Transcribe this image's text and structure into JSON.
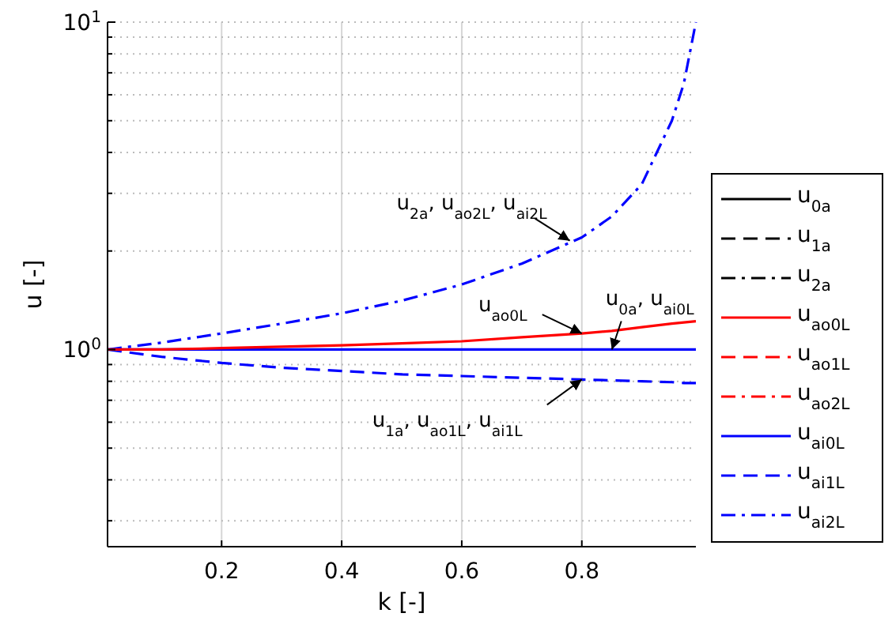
{
  "chart_data": {
    "type": "line",
    "xlabel": "k [-]",
    "ylabel": "u [-]",
    "log": "y",
    "grid": true,
    "legend": "right",
    "marker": "none",
    "xlim": [
      0.01,
      0.99
    ],
    "xticks": [
      0.2,
      0.4,
      0.6,
      0.8
    ],
    "ylim": [
      0.25,
      10
    ],
    "yticks": [
      {
        "value": 0.3,
        "label": null
      },
      {
        "value": 0.4,
        "label": null
      },
      {
        "value": 0.5,
        "label": null
      },
      {
        "value": 0.6,
        "label": null
      },
      {
        "value": 0.7,
        "label": null
      },
      {
        "value": 0.8,
        "label": null
      },
      {
        "value": 0.9,
        "label": null
      },
      {
        "value": 1,
        "label": "10$^{0}$"
      },
      {
        "value": 2,
        "label": null
      },
      {
        "value": 3,
        "label": null
      },
      {
        "value": 4,
        "label": null
      },
      {
        "value": 5,
        "label": null
      },
      {
        "value": 6,
        "label": null
      },
      {
        "value": 7,
        "label": null
      },
      {
        "value": 8,
        "label": null
      },
      {
        "value": 9,
        "label": null
      },
      {
        "value": 10,
        "label": "10$^{1}$"
      }
    ],
    "x": [
      0.01,
      0.1,
      0.2,
      0.3,
      0.4,
      0.5,
      0.6,
      0.7,
      0.8,
      0.85,
      0.9,
      0.95,
      0.97,
      0.99
    ],
    "series": [
      {
        "name": "u$_{0a}$",
        "color": "#000000",
        "line_style": "solid",
        "values": [
          null,
          null,
          null,
          null,
          null,
          null,
          null,
          null,
          null,
          null,
          null,
          null,
          null,
          null
        ]
      },
      {
        "name": "u$_{1a}$",
        "color": "#000000",
        "line_style": "dashed",
        "values": [
          null,
          null,
          null,
          null,
          null,
          null,
          null,
          null,
          null,
          null,
          null,
          null,
          null,
          null
        ]
      },
      {
        "name": "u$_{2a}$",
        "color": "#000000",
        "line_style": "dashdot",
        "values": [
          null,
          null,
          null,
          null,
          null,
          null,
          null,
          null,
          null,
          null,
          null,
          null,
          null,
          null
        ]
      },
      {
        "name": "u$_{ao0L}$",
        "color": "#ff0000",
        "line_style": "solid",
        "values": [
          1,
          1,
          1.01,
          1.02,
          1.03,
          1.045,
          1.06,
          1.09,
          1.12,
          1.14,
          1.17,
          1.2,
          1.21,
          1.22
        ]
      },
      {
        "name": "u$_{ao1L}$",
        "color": "#ff0000",
        "line_style": "dashed",
        "values": [
          null,
          null,
          null,
          null,
          null,
          null,
          null,
          null,
          null,
          null,
          null,
          null,
          null,
          null
        ]
      },
      {
        "name": "u$_{ao2L}$",
        "color": "#ff0000",
        "line_style": "dashdot",
        "values": [
          null,
          null,
          null,
          null,
          null,
          null,
          null,
          null,
          null,
          null,
          null,
          null,
          null,
          null
        ]
      },
      {
        "name": "u$_{ai0L}$",
        "color": "#0000ff",
        "line_style": "solid",
        "values": [
          1,
          1,
          1,
          1,
          1,
          1,
          1,
          1,
          1,
          1,
          1,
          1,
          1,
          1
        ]
      },
      {
        "name": "u$_{ai1L}$",
        "color": "#0000ff",
        "line_style": "dashed",
        "values": [
          1,
          0.95,
          0.91,
          0.88,
          0.86,
          0.84,
          0.83,
          0.82,
          0.81,
          0.805,
          0.8,
          0.795,
          0.79,
          0.79
        ]
      },
      {
        "name": "u$_{ai2L}$",
        "color": "#0000ff",
        "line_style": "dashdot",
        "values": [
          1,
          1.05,
          1.12,
          1.2,
          1.29,
          1.41,
          1.58,
          1.83,
          2.2,
          2.55,
          3.2,
          5,
          6.5,
          10
        ]
      }
    ],
    "annotations": [
      {
        "text": "u$_{2a}$, u$_{ao2L}$, u$_{ai2L}$",
        "x": 0.78,
        "y": 2.15
      },
      {
        "text": "u$_{ao0L}$",
        "x": 0.8,
        "y": 1.12
      },
      {
        "text": "u$_{0a}$, u$_{ai0L}$",
        "x": 0.85,
        "y": 1
      },
      {
        "text": "u$_{1a}$, u$_{ao1L}$, u$_{ai1L}$",
        "x": 0.8,
        "y": 0.81
      }
    ]
  }
}
